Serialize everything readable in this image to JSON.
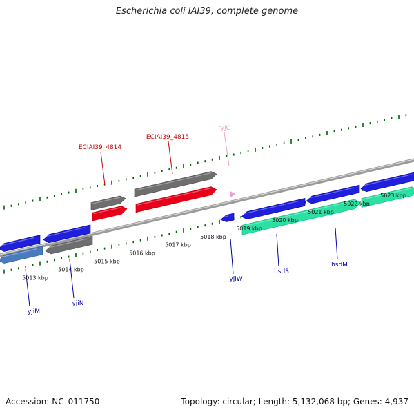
{
  "title": "Escherichia coli IAI39, complete genome",
  "footer": {
    "accession": "Accession: NC_011750",
    "summary": "Topology: circular; Length: 5,132,068 bp; Genes: 4,937"
  },
  "colors": {
    "backbone": "#8c8c8c",
    "tick": "#006400",
    "blue_gene": "#1f1fdc",
    "red_gene": "#e8001a",
    "gray_gene": "#6e6e6e",
    "teal_gene": "#2be0a3",
    "light_blue_gene": "#4a7bbd",
    "red_label": "#cc0000",
    "blue_label": "#0000aa",
    "pink_label": "#f0a0c8"
  },
  "ticks": [
    {
      "label": "5013 kbp"
    },
    {
      "label": "5014 kbp"
    },
    {
      "label": "5015 kbp"
    },
    {
      "label": "5016 kbp"
    },
    {
      "label": "5017 kbp"
    },
    {
      "label": "5018 kbp"
    },
    {
      "label": "5019 kbp"
    },
    {
      "label": "5020 kbp"
    },
    {
      "label": "5021 kbp"
    },
    {
      "label": "5022 kbp"
    },
    {
      "label": "5023 kbp"
    }
  ],
  "gene_labels": [
    {
      "name": "ECIAI39_4814",
      "color": "red"
    },
    {
      "name": "ECIAI39_4815",
      "color": "red"
    },
    {
      "name": "ryjC",
      "color": "pink"
    },
    {
      "name": "yjiM",
      "color": "blue"
    },
    {
      "name": "yjiN",
      "color": "blue"
    },
    {
      "name": "yjiW",
      "color": "blue"
    },
    {
      "name": "hsdS",
      "color": "blue"
    },
    {
      "name": "hsdM",
      "color": "blue"
    }
  ]
}
